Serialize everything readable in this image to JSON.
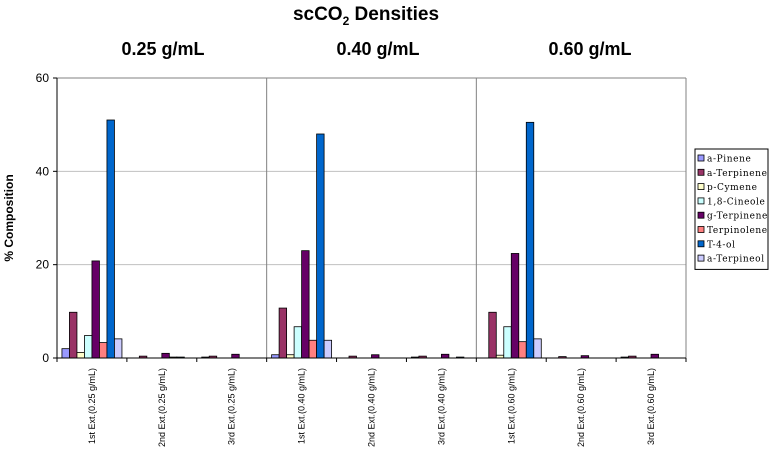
{
  "chart_data": {
    "type": "bar",
    "title": "scCO",
    "title_sub": "2",
    "title_rest": " Densities",
    "ylabel": "% Composition",
    "xlabel": "",
    "ylim": [
      0,
      60
    ],
    "yticks": [
      0,
      20,
      40,
      60
    ],
    "grid": true,
    "legend_position": "right",
    "groups": [
      {
        "label": "0.25 g/mL",
        "categories": [
          "1st Ext.(0.25 g/mL)",
          "2nd Ext.(0.25 g/mL)",
          "3rd Ext.(0.25 g/mL)"
        ]
      },
      {
        "label": "0.40 g/mL",
        "categories": [
          "1st Ext.(0.40 g/mL)",
          "2nd Ext.(0.40 g/mL)",
          "3rd Ext.(0.40 g/mL)"
        ]
      },
      {
        "label": "0.60 g/mL",
        "categories": [
          "1st Ext.(0.60 g/mL)",
          "2nd Ext.(0.60 g/mL)",
          "3rd Ext.(0.60 g/mL)"
        ]
      }
    ],
    "series": [
      {
        "name": "a-Pinene",
        "color": "#9999ff",
        "values": [
          2.0,
          0.0,
          0.2,
          0.7,
          0.0,
          0.2,
          0.0,
          0.0,
          0.2
        ]
      },
      {
        "name": "a-Terpinene",
        "color": "#993366",
        "values": [
          9.8,
          0.4,
          0.4,
          10.7,
          0.4,
          0.4,
          9.8,
          0.3,
          0.4
        ]
      },
      {
        "name": "p-Cymene",
        "color": "#ffffcc",
        "values": [
          1.2,
          0.0,
          0.0,
          0.7,
          0.0,
          0.0,
          0.6,
          0.0,
          0.0
        ]
      },
      {
        "name": "1,8-Cineole",
        "color": "#ccffff",
        "values": [
          4.8,
          0.0,
          0.0,
          6.7,
          0.0,
          0.0,
          6.7,
          0.0,
          0.0
        ]
      },
      {
        "name": "g-Terpinene",
        "color": "#660066",
        "values": [
          20.8,
          1.0,
          0.8,
          23.0,
          0.7,
          0.8,
          22.4,
          0.5,
          0.8
        ]
      },
      {
        "name": "Terpinolene",
        "color": "#ff8080",
        "values": [
          3.3,
          0.2,
          0.0,
          3.8,
          0.0,
          0.0,
          3.5,
          0.0,
          0.0
        ]
      },
      {
        "name": "T-4-ol",
        "color": "#0066cc",
        "values": [
          51.0,
          0.2,
          0.0,
          48.0,
          0.0,
          0.2,
          50.5,
          0.0,
          0.0
        ]
      },
      {
        "name": "a-Terpineol",
        "color": "#ccccff",
        "values": [
          4.1,
          0.0,
          0.0,
          3.8,
          0.0,
          0.0,
          4.1,
          0.0,
          0.0
        ]
      }
    ]
  }
}
